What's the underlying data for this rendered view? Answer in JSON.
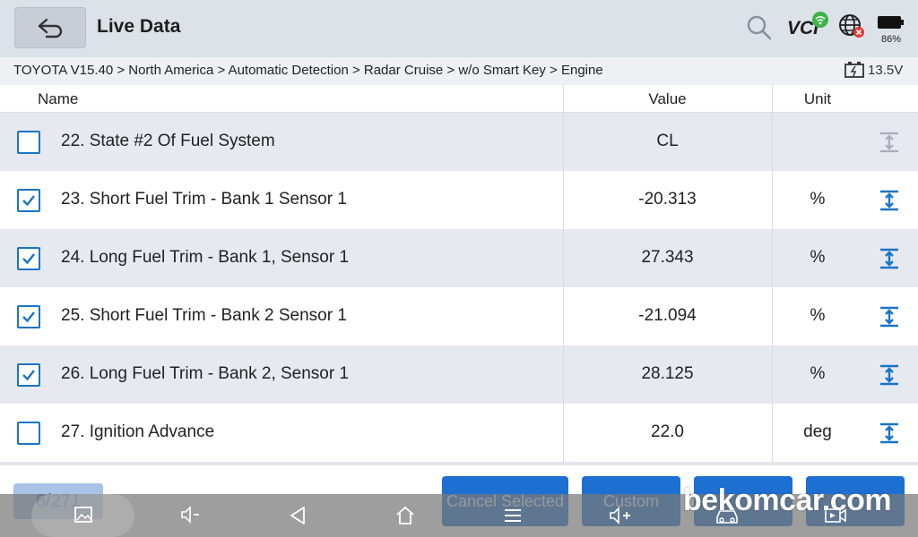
{
  "header": {
    "title": "Live Data",
    "vci_label": "VCI",
    "battery_percent": "86%",
    "icons": [
      "back-arrow-icon",
      "search-icon",
      "vci-wifi-icon",
      "globe-error-icon",
      "battery-icon"
    ]
  },
  "breadcrumb": {
    "path": "TOYOTA V15.40 > North America  > Automatic Detection  > Radar Cruise  > w/o Smart Key  > Engine",
    "voltage": "13.5V"
  },
  "table": {
    "headers": {
      "name": "Name",
      "value": "Value",
      "unit": "Unit"
    },
    "rows": [
      {
        "name": "22. State #2 Of Fuel System",
        "value": "CL",
        "unit": "",
        "checked": false,
        "graph_enabled": false
      },
      {
        "name": "23. Short Fuel Trim - Bank 1 Sensor 1",
        "value": "-20.313",
        "unit": "%",
        "checked": true,
        "graph_enabled": true
      },
      {
        "name": "24. Long Fuel Trim - Bank 1, Sensor 1",
        "value": "27.343",
        "unit": "%",
        "checked": true,
        "graph_enabled": true
      },
      {
        "name": "25. Short Fuel Trim - Bank 2 Sensor 1",
        "value": "-21.094",
        "unit": "%",
        "checked": true,
        "graph_enabled": true
      },
      {
        "name": "26. Long Fuel Trim - Bank 2, Sensor 1",
        "value": "28.125",
        "unit": "%",
        "checked": true,
        "graph_enabled": true
      },
      {
        "name": "27. Ignition Advance",
        "value": "22.0",
        "unit": "deg",
        "checked": false,
        "graph_enabled": true
      }
    ]
  },
  "footer": {
    "page_indicator": "6/271",
    "buttons": {
      "cancel_selected": "Cancel Selected",
      "custom": "Custom"
    }
  },
  "watermark": "bekomcar.com",
  "colors": {
    "accent": "#1d6fd1",
    "checkbox": "#1a73c8",
    "header_bg": "#dde1e8",
    "row_shade": "#e6e9f0"
  }
}
